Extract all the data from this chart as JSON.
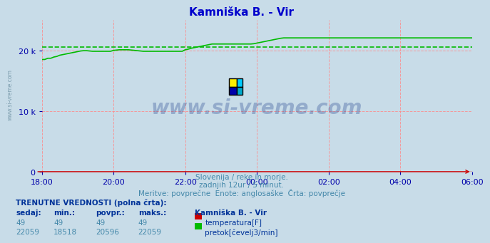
{
  "title": "Kamniška B. - Vir",
  "title_color": "#0000cc",
  "bg_color": "#c8dce8",
  "plot_bg_color": "#c8dce8",
  "grid_color": "#ff8888",
  "x_tick_labels": [
    "18:00",
    "20:00",
    "22:00",
    "00:00",
    "02:00",
    "04:00",
    "06:00"
  ],
  "x_tick_positions": [
    0,
    24,
    48,
    72,
    96,
    120,
    144
  ],
  "total_points": 145,
  "ylim": [
    0,
    25000
  ],
  "yticks": [
    0,
    10000,
    20000
  ],
  "ytick_labels": [
    "0",
    "10 k",
    "20 k"
  ],
  "axis_color": "#cc0000",
  "tick_color": "#0000aa",
  "temp_color": "#cc0000",
  "flow_color": "#00bb00",
  "avg_line_color": "#00bb00",
  "avg_value": 20596,
  "temp_value": 49,
  "subtitle1": "Slovenija / reke in morje.",
  "subtitle2": "zadnjih 12ur / 5 minut.",
  "subtitle3": "Meritve: povprečne  Enote: anglosaške  Črta: povprečje",
  "subtitle_color": "#4488aa",
  "watermark": "www.si-vreme.com",
  "watermark_color": "#1a3a8a",
  "watermark_alpha": 0.3,
  "legend_title": "Kamniška B. - Vir",
  "legend_title_color": "#003399",
  "legend_entries": [
    "temperatura[F]",
    "pretok[čevelj3/min]"
  ],
  "legend_colors": [
    "#cc0000",
    "#00bb00"
  ],
  "table_header": "TRENUTNE VREDNOSTI (polna črta):",
  "table_cols": [
    "sedaj:",
    "min.:",
    "povpr.:",
    "maks.:"
  ],
  "table_data": [
    [
      49,
      49,
      49,
      49
    ],
    [
      22059,
      18518,
      20596,
      22059
    ]
  ],
  "flow_data": [
    18500,
    18500,
    18700,
    18700,
    18900,
    19000,
    19200,
    19300,
    19400,
    19500,
    19600,
    19700,
    19800,
    19900,
    19950,
    19950,
    19900,
    19850,
    19850,
    19850,
    19850,
    19850,
    19850,
    19850,
    20000,
    20050,
    20100,
    20100,
    20100,
    20100,
    20050,
    20000,
    19950,
    19900,
    19850,
    19850,
    19850,
    19850,
    19850,
    19850,
    19850,
    19850,
    19850,
    19850,
    19850,
    19850,
    19850,
    19850,
    20100,
    20200,
    20350,
    20450,
    20550,
    20650,
    20750,
    20850,
    20950,
    21050,
    21050,
    21050,
    21050,
    21050,
    21050,
    21050,
    21050,
    21050,
    21050,
    21050,
    21050,
    21050,
    21050,
    21100,
    21200,
    21300,
    21400,
    21500,
    21600,
    21700,
    21800,
    21900,
    22000,
    22059,
    22059,
    22059,
    22059,
    22059,
    22059,
    22059,
    22059,
    22059,
    22059,
    22059,
    22059,
    22059,
    22059,
    22059,
    22059,
    22059,
    22059,
    22059,
    22059,
    22059,
    22059,
    22059,
    22059,
    22059,
    22059,
    22059,
    22059,
    22059,
    22059,
    22059,
    22059,
    22059,
    22059,
    22059,
    22059,
    22059,
    22059,
    22059,
    22059,
    22059,
    22059,
    22059,
    22059,
    22059,
    22059,
    22059,
    22059,
    22059,
    22059,
    22059,
    22059,
    22059,
    22059,
    22059,
    22059,
    22059,
    22059,
    22059,
    22059,
    22059,
    22059,
    22059,
    22059
  ]
}
